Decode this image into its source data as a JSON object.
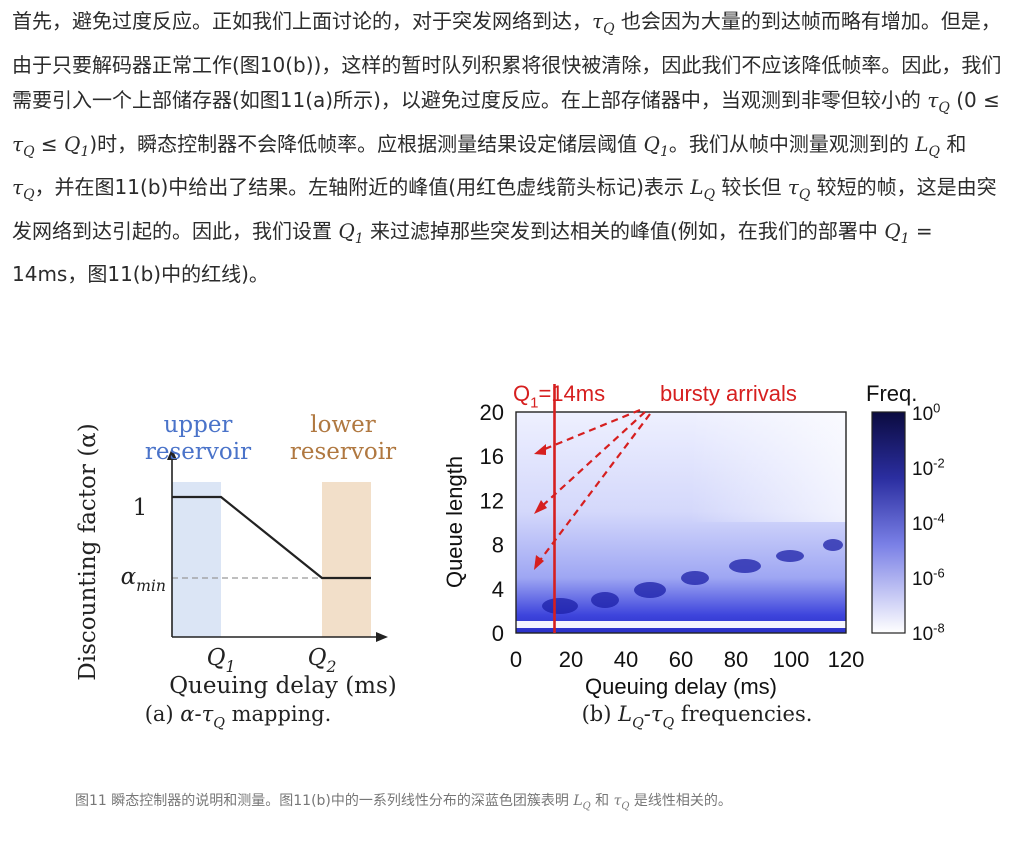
{
  "paragraph": [
    "首先，避免过度反应。正如我们上面讨论的，对于突发网络到达，",
    {
      "base": "τ",
      "sub": "Q"
    },
    " 也会因为大量的到达帧而略有增加。但是，由于只要解码器正常工作(图10(b))，这样的暂时队列积累将很快被清除，因此我们不应该降低帧率。因此，我们需要引入一个上部储存器(如图11(a)所示)，以避免过度反应。在上部存储器中，当观测到非零但较小的 ",
    {
      "base": "τ",
      "sub": "Q"
    },
    " (0 ≤ ",
    {
      "base": "τ",
      "sub": "Q"
    },
    " ≤ ",
    {
      "base": "Q",
      "sub": "1"
    },
    ")时，瞬态控制器不会降低帧率。应根据测量结果设定储层阈值 ",
    {
      "base": "Q",
      "sub": "1"
    },
    "。我们从帧中测量观测到的 ",
    {
      "base": "L",
      "sub": "Q"
    },
    " 和 ",
    {
      "base": "τ",
      "sub": "Q"
    },
    "，并在图11(b)中给出了结果。左轴附近的峰值(用红色虚线箭头标记)表示 ",
    {
      "base": "L",
      "sub": "Q"
    },
    " 较长但 ",
    {
      "base": "τ",
      "sub": "Q"
    },
    " 较短的帧，这是由突发网络到达引起的。因此，我们设置 ",
    {
      "base": "Q",
      "sub": "1"
    },
    " 来过滤掉那些突发到达相关的峰值(例如，在我们的部署中 ",
    {
      "base": "Q",
      "sub": "1"
    },
    " = 14ms，图11(b)中的红线)。"
  ],
  "figure": {
    "a": {
      "upper_label": [
        "upper",
        "reservoir"
      ],
      "lower_label": [
        "lower",
        "reservoir"
      ],
      "ytick_one": 1,
      "ytick_min": {
        "base": "α",
        "sub": "min"
      },
      "xticks": [
        {
          "base": "Q",
          "sub": "1"
        },
        {
          "base": "Q",
          "sub": "2"
        }
      ],
      "xlabel": "Queuing delay (ms)",
      "ylabel": "Discounting factor (α)",
      "caption": [
        "(a) ",
        {
          "base": "α"
        },
        "-",
        {
          "base": "τ",
          "sub": "Q"
        },
        " mapping."
      ]
    },
    "b": {
      "annotation_q1": [
        {
          "base": "Q",
          "sub": "1"
        },
        "=14ms"
      ],
      "annotation_bursty": "bursty arrivals",
      "legend_title": "Freq.",
      "colorbar_ticks": [
        {
          "base": "10",
          "sup": "0"
        },
        {
          "base": "10",
          "sup": "-2"
        },
        {
          "base": "10",
          "sup": "-4"
        },
        {
          "base": "10",
          "sup": "-6"
        },
        {
          "base": "10",
          "sup": "-8"
        }
      ],
      "yticks": [
        0,
        4,
        8,
        12,
        16,
        20
      ],
      "xticks": [
        0,
        20,
        40,
        60,
        80,
        100,
        120
      ],
      "ylabel": "Queue length",
      "xlabel": "Queuing delay (ms)",
      "caption": [
        "(b) ",
        {
          "base": "L",
          "sub": "Q"
        },
        "-",
        {
          "base": "τ",
          "sub": "Q"
        },
        " frequencies."
      ]
    }
  },
  "caption": [
    "图11 瞬态控制器的说明和测量。图11(b)中的一系列线性分布的深蓝色团簇表明 ",
    {
      "base": "L",
      "sub": "Q"
    },
    " 和 ",
    {
      "base": "τ",
      "sub": "Q"
    },
    " 是线性相关的。"
  ]
}
